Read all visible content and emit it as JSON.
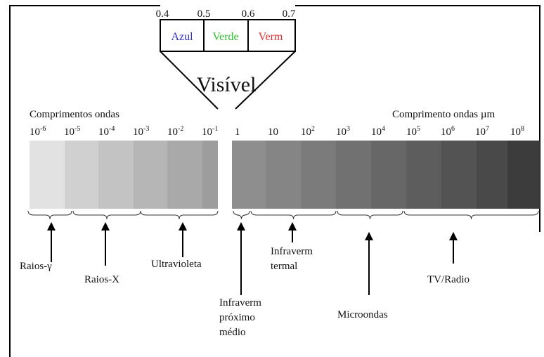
{
  "visible": {
    "ticks": [
      "0.4",
      "0.5",
      "0.6",
      "0.7"
    ],
    "bands": [
      "Azul",
      "Verde",
      "Verm"
    ],
    "title": "Visível"
  },
  "left_axis_label": "Comprimentos ondas",
  "right_axis_label": "Comprimento ondas µm",
  "left_ticks": [
    {
      "base": "10",
      "exp": "-6"
    },
    {
      "base": "10",
      "exp": "-5"
    },
    {
      "base": "10",
      "exp": "-4"
    },
    {
      "base": "10",
      "exp": "-3"
    },
    {
      "base": "10",
      "exp": "-2"
    },
    {
      "base": "10",
      "exp": "-1"
    }
  ],
  "right_ticks": [
    {
      "base": "1",
      "exp": ""
    },
    {
      "base": "10",
      "exp": ""
    },
    {
      "base": "10",
      "exp": "2"
    },
    {
      "base": "10",
      "exp": "3"
    },
    {
      "base": "10",
      "exp": "4"
    },
    {
      "base": "10",
      "exp": "5"
    },
    {
      "base": "10",
      "exp": "6"
    },
    {
      "base": "10",
      "exp": "7"
    },
    {
      "base": "10",
      "exp": "8"
    }
  ],
  "regions": [
    {
      "lines": [
        "Raios-γ"
      ]
    },
    {
      "lines": [
        "Raios-X"
      ]
    },
    {
      "lines": [
        "Ultravioleta"
      ]
    },
    {
      "lines": [
        "Infraverm",
        "próximo",
        "médio"
      ]
    },
    {
      "lines": [
        "Infraverm",
        "termal"
      ]
    },
    {
      "lines": [
        "Microondas"
      ]
    },
    {
      "lines": [
        "TV/Radio"
      ]
    }
  ]
}
